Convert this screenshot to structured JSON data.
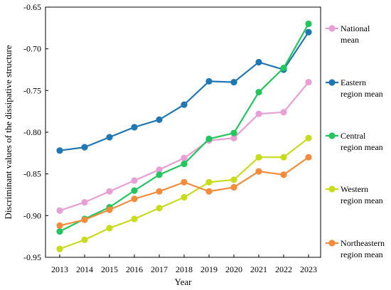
{
  "chart_data": {
    "type": "line",
    "xlabel": "Year",
    "ylabel": "Discriminant values of the dissipative structure",
    "ylim": [
      -0.95,
      -0.65
    ],
    "yticks": [
      "-0.65",
      "-0.70",
      "-0.75",
      "-0.80",
      "-0.85",
      "-0.90",
      "-0.95"
    ],
    "ytick_values": [
      -0.65,
      -0.7,
      -0.75,
      -0.8,
      -0.85,
      -0.9,
      -0.95
    ],
    "x": [
      "2013",
      "2014",
      "2015",
      "2016",
      "2017",
      "2018",
      "2019",
      "2020",
      "2021",
      "2022",
      "2023"
    ],
    "legend_position": "right",
    "grid": false,
    "series": [
      {
        "name": "National mean",
        "name_lines": [
          "National",
          "mean"
        ],
        "color": "#e8a0d4",
        "values": [
          -0.894,
          -0.884,
          -0.871,
          -0.858,
          -0.845,
          -0.831,
          -0.81,
          -0.807,
          -0.778,
          -0.776,
          -0.74
        ]
      },
      {
        "name": "Eastern region mean",
        "name_lines": [
          "Eastern",
          "region mean"
        ],
        "color": "#1f77b4",
        "values": [
          -0.822,
          -0.818,
          -0.806,
          -0.794,
          -0.785,
          -0.767,
          -0.739,
          -0.74,
          -0.716,
          -0.725,
          -0.68
        ]
      },
      {
        "name": "Central region mean",
        "name_lines": [
          "Central",
          "region mean"
        ],
        "color": "#22c55e",
        "values": [
          -0.919,
          -0.904,
          -0.89,
          -0.87,
          -0.851,
          -0.838,
          -0.808,
          -0.801,
          -0.752,
          -0.723,
          -0.67
        ]
      },
      {
        "name": "Western region mean",
        "name_lines": [
          "Western",
          "region mean"
        ],
        "color": "#c8dc1e",
        "values": [
          -0.94,
          -0.929,
          -0.915,
          -0.904,
          -0.891,
          -0.878,
          -0.86,
          -0.857,
          -0.83,
          -0.83,
          -0.807
        ]
      },
      {
        "name": "Northeastern region mean",
        "name_lines": [
          "Northeastern",
          "region mean"
        ],
        "color": "#f28c3c",
        "values": [
          -0.912,
          -0.905,
          -0.893,
          -0.88,
          -0.871,
          -0.86,
          -0.871,
          -0.866,
          -0.847,
          -0.851,
          -0.83
        ]
      }
    ]
  }
}
